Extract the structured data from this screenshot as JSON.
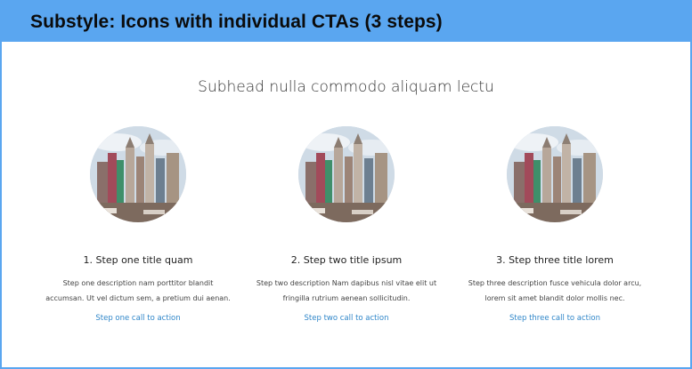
{
  "banner": {
    "title": "Substyle: Icons with individual CTAs (3 steps)"
  },
  "subhead": "Subhead nulla commodo aliquam lectu",
  "steps": [
    {
      "title": "1. Step one title quam",
      "desc_line1": "Step one description nam porttitor blandit",
      "desc_line2": "accumsan. Ut vel dictum sem, a pretium dui aenan.",
      "cta": "Step one call to action"
    },
    {
      "title": "2. Step two title ipsum",
      "desc_line1": "Step two description Nam dapibus nisl vitae elit ut",
      "desc_line2": "fringilla rutrium aenean sollicitudin.",
      "cta": "Step two call to action"
    },
    {
      "title": "3. Step three title lorem",
      "desc_line1": "Step three description fusce vehicula dolor arcu,",
      "desc_line2": "lorem sit amet blandit dolor mollis nec.",
      "cta": "Step three call to action"
    }
  ],
  "colors": {
    "banner_bg": "#5aa6f0",
    "cta_link": "#2f86c9"
  },
  "images": {
    "step_photo": "city-skyline-photo"
  }
}
